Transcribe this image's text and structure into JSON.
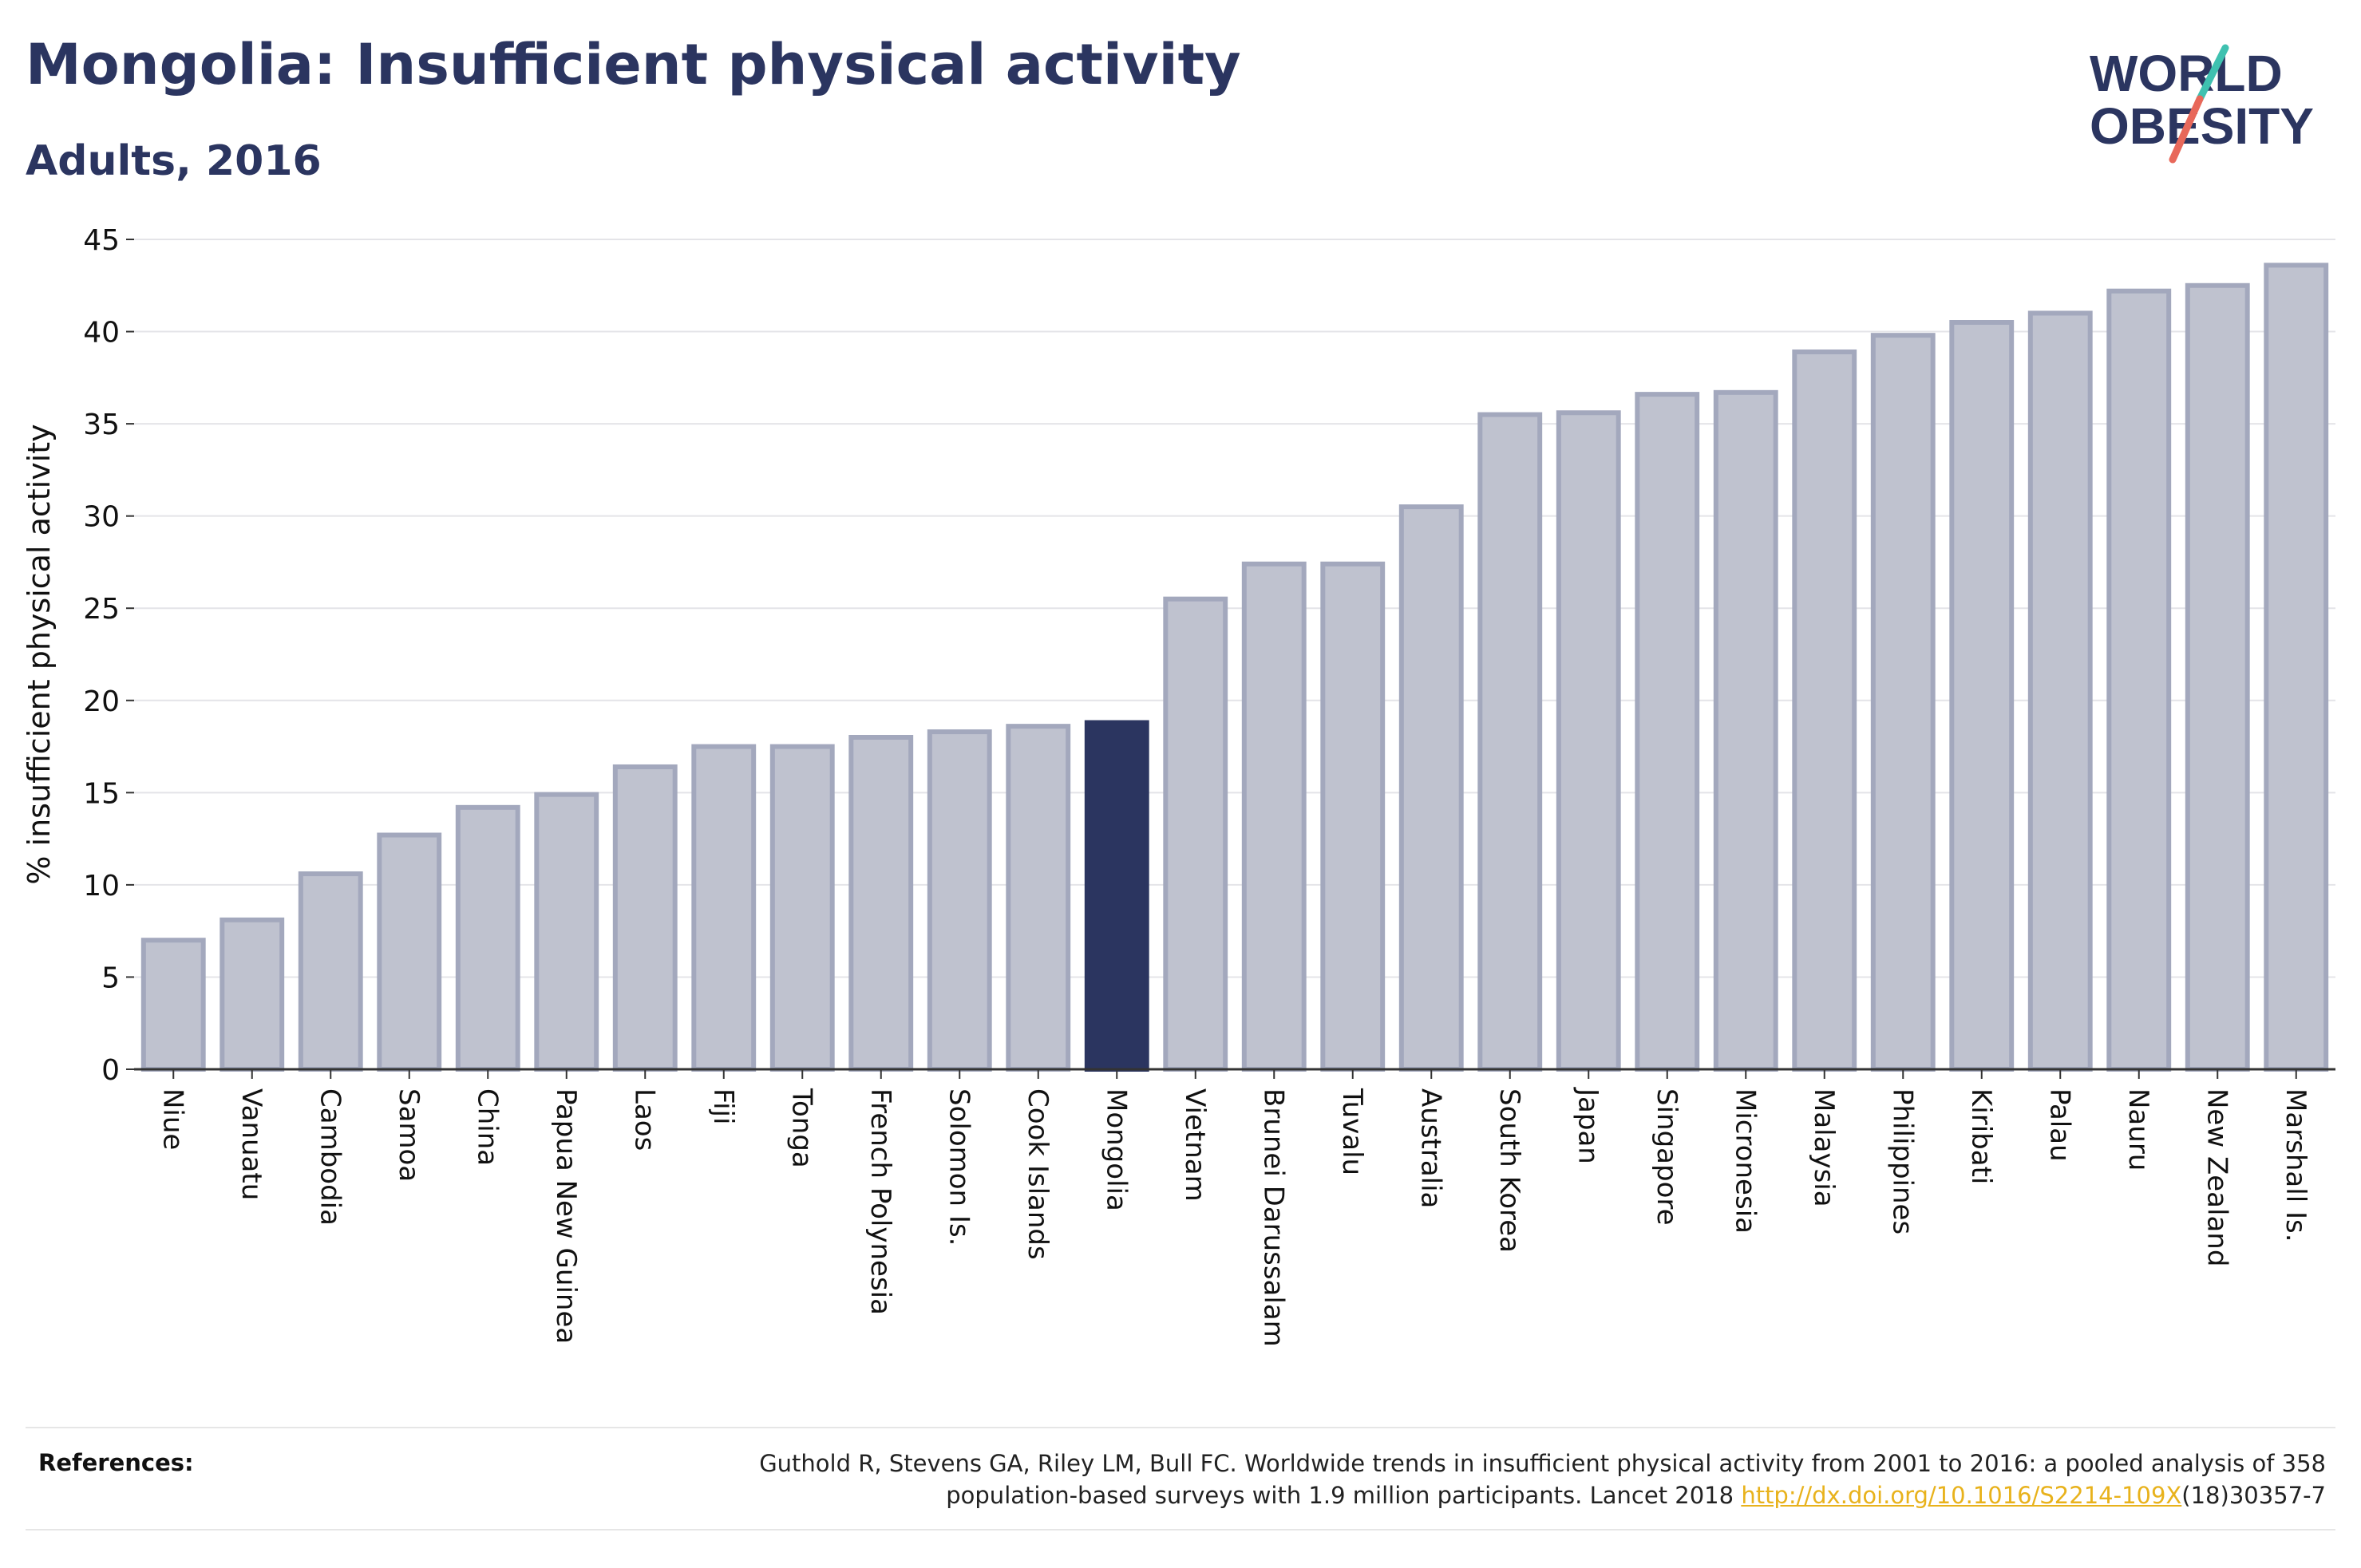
{
  "header": {
    "title": "Mongolia: Insufficient physical activity",
    "subtitle": "Adults, 2016"
  },
  "logo": {
    "line1": "WORLD",
    "line2": "OBESITY",
    "colors": {
      "text": "#2b3560",
      "slash_top": "#3fc1b0",
      "slash_bottom": "#e8685a"
    }
  },
  "chart_data": {
    "type": "bar",
    "ylabel": "% insufficient physical activity",
    "xlabel": "",
    "ylim": [
      0,
      45
    ],
    "yticks": [
      0,
      5,
      10,
      15,
      20,
      25,
      30,
      35,
      40,
      45
    ],
    "grid": true,
    "highlight": "Mongolia",
    "colors": {
      "bar": "#bfc2cf",
      "bar_edge": "#a3a8bd",
      "highlight": "#2b3560",
      "grid": "#e4e4e8",
      "axis": "#333333"
    },
    "categories": [
      "Niue",
      "Vanuatu",
      "Cambodia",
      "Samoa",
      "China",
      "Papua New Guinea",
      "Laos",
      "Fiji",
      "Tonga",
      "French Polynesia",
      "Solomon Is.",
      "Cook Islands",
      "Mongolia",
      "Vietnam",
      "Brunei Darussalam",
      "Tuvalu",
      "Australia",
      "South Korea",
      "Japan",
      "Singapore",
      "Micronesia",
      "Malaysia",
      "Philippines",
      "Kiribati",
      "Palau",
      "Nauru",
      "New Zealand",
      "Marshall Is."
    ],
    "values": [
      7.0,
      8.1,
      10.6,
      12.7,
      14.2,
      14.9,
      16.4,
      17.5,
      17.5,
      18.0,
      18.3,
      18.6,
      18.8,
      25.5,
      27.4,
      27.4,
      30.5,
      35.5,
      35.6,
      36.6,
      36.7,
      38.9,
      39.8,
      40.5,
      41.0,
      42.2,
      42.5,
      43.6
    ]
  },
  "references": {
    "label": "References:",
    "text_line1": "Guthold R, Stevens GA, Riley LM, Bull FC. Worldwide trends in insufficient physical activity from 2001 to 2016: a pooled analysis of 358",
    "text_line2_before": "population-based surveys with 1.9 million participants. Lancet 2018 ",
    "link": "http://dx.doi.org/10.1016/S2214-109X",
    "text_line2_after": "(18)30357-7"
  }
}
